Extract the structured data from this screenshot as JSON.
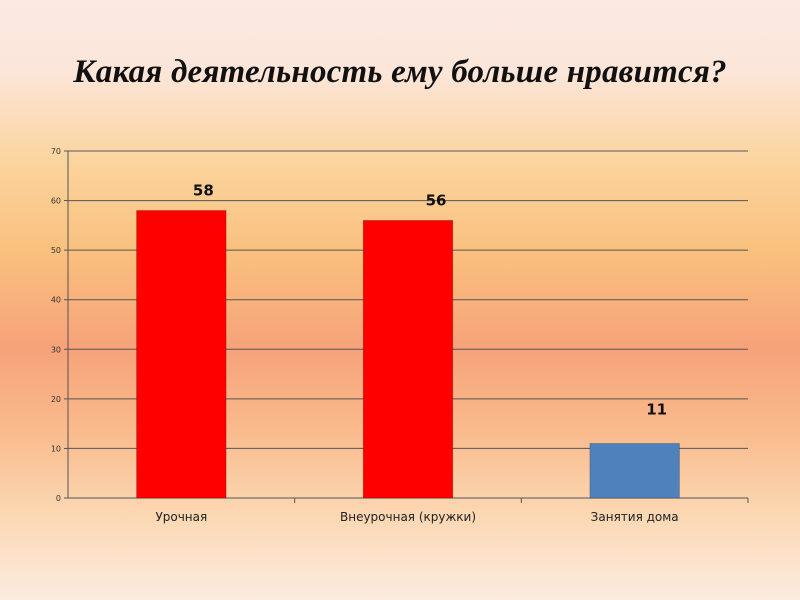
{
  "chart_data": {
    "type": "bar",
    "title": "Какая деятельность ему больше нравится?",
    "categories": [
      "Урочная",
      "Внеурочная (кружки)",
      "Занятия дома"
    ],
    "values": [
      58,
      56,
      11
    ],
    "colors": [
      "#ff0000",
      "#ff0000",
      "#4f81bd"
    ],
    "ylim": [
      0,
      70
    ],
    "yticks": [
      0,
      10,
      20,
      30,
      40,
      50,
      60,
      70
    ],
    "grid": true,
    "legend": "none",
    "xlabel": "",
    "ylabel": ""
  }
}
